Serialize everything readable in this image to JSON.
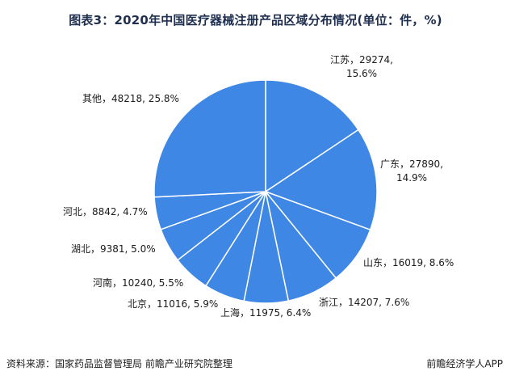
{
  "title": "图表3：2020年中国医疗器械注册产品区域分布情况(单位：件，%)",
  "source": "资料来源：国家药品监督管理局 前瞻产业研究院整理",
  "watermark": "前瞻经济学人APP",
  "colors": {
    "slice": "#3f87e4",
    "edge": "#ffffff"
  },
  "chart_data": {
    "type": "pie",
    "title": "图表3：2020年中国医疗器械注册产品区域分布情况(单位：件，%)",
    "slices": [
      {
        "name": "江苏",
        "value": 29274,
        "pct": "15.6%",
        "label": [
          "江苏，29274,",
          "15.6%"
        ]
      },
      {
        "name": "广东",
        "value": 27890,
        "pct": "14.9%",
        "label": [
          "广东，27890,",
          "14.9%"
        ]
      },
      {
        "name": "山东",
        "value": 16019,
        "pct": "8.6%",
        "label": [
          "山东，16019, 8.6%"
        ]
      },
      {
        "name": "浙江",
        "value": 14207,
        "pct": "7.6%",
        "label": [
          "浙江，14207, 7.6%"
        ]
      },
      {
        "name": "上海",
        "value": 11975,
        "pct": "6.4%",
        "label": [
          "上海，11975, 6.4%"
        ]
      },
      {
        "name": "北京",
        "value": 11016,
        "pct": "5.9%",
        "label": [
          "北京，11016, 5.9%"
        ]
      },
      {
        "name": "河南",
        "value": 10240,
        "pct": "5.5%",
        "label": [
          "河南，10240, 5.5%"
        ]
      },
      {
        "name": "湖北",
        "value": 9381,
        "pct": "5.0%",
        "label": [
          "湖北，9381, 5.0%"
        ]
      },
      {
        "name": "河北",
        "value": 8842,
        "pct": "4.7%",
        "label": [
          "河北，8842, 4.7%"
        ]
      },
      {
        "name": "其他",
        "value": 48218,
        "pct": "25.8%",
        "label": [
          "其他，48218, 25.8%"
        ]
      }
    ],
    "legend": "none"
  }
}
